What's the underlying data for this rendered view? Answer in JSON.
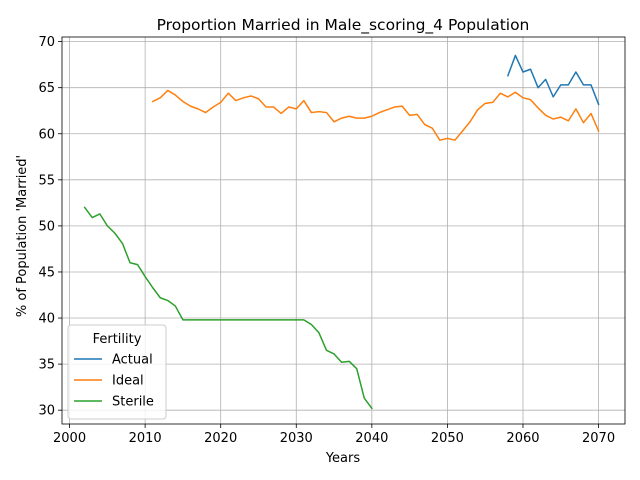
{
  "chart_data": {
    "type": "line",
    "title": "Proportion Married in Male_scoring_4 Population",
    "xlabel": "Years",
    "ylabel": "% of Population 'Married'",
    "xlim": [
      1999,
      2073.5
    ],
    "ylim": [
      28.5,
      70.5
    ],
    "xticks": [
      2000,
      2010,
      2020,
      2030,
      2040,
      2050,
      2060,
      2070
    ],
    "yticks": [
      30,
      35,
      40,
      45,
      50,
      55,
      60,
      65,
      70
    ],
    "grid": true,
    "legend": {
      "title": "Fertility",
      "placement": "lower-left"
    },
    "series": [
      {
        "name": "Actual",
        "color": "#1f77b4",
        "x": [
          2058,
          2059,
          2060,
          2061,
          2062,
          2063,
          2064,
          2065,
          2066,
          2067,
          2068,
          2069,
          2070
        ],
        "y": [
          66.3,
          68.5,
          66.7,
          67.0,
          65.0,
          65.9,
          64.0,
          65.3,
          65.3,
          66.7,
          65.3,
          65.3,
          63.2
        ]
      },
      {
        "name": "Ideal",
        "color": "#ff7f0e",
        "x": [
          2011,
          2012,
          2013,
          2014,
          2015,
          2016,
          2017,
          2018,
          2019,
          2020,
          2021,
          2022,
          2023,
          2024,
          2025,
          2026,
          2027,
          2028,
          2029,
          2030,
          2031,
          2032,
          2033,
          2034,
          2035,
          2036,
          2037,
          2038,
          2039,
          2040,
          2041,
          2042,
          2043,
          2044,
          2045,
          2046,
          2047,
          2048,
          2049,
          2050,
          2051,
          2052,
          2053,
          2054,
          2055,
          2056,
          2057,
          2058,
          2059,
          2060,
          2061,
          2062,
          2063,
          2064,
          2065,
          2066,
          2067,
          2068,
          2069,
          2070
        ],
        "y": [
          63.5,
          63.9,
          64.7,
          64.2,
          63.5,
          63.0,
          62.7,
          62.3,
          62.9,
          63.4,
          64.4,
          63.6,
          63.9,
          64.1,
          63.8,
          62.9,
          62.9,
          62.2,
          62.9,
          62.7,
          63.6,
          62.3,
          62.4,
          62.3,
          61.3,
          61.7,
          61.9,
          61.7,
          61.7,
          61.9,
          62.3,
          62.6,
          62.9,
          63.0,
          62.0,
          62.1,
          61.0,
          60.6,
          59.3,
          59.5,
          59.3,
          60.3,
          61.3,
          62.6,
          63.3,
          63.4,
          64.4,
          64.0,
          64.5,
          63.9,
          63.7,
          62.8,
          62.0,
          61.6,
          61.8,
          61.4,
          62.7,
          61.2,
          62.2,
          60.3
        ]
      },
      {
        "name": "Sterile",
        "color": "#2ca02c",
        "x": [
          2002,
          2003,
          2004,
          2005,
          2006,
          2007,
          2008,
          2009,
          2010,
          2011,
          2012,
          2013,
          2014,
          2015,
          2016,
          2017,
          2018,
          2019,
          2020,
          2021,
          2022,
          2023,
          2024,
          2025,
          2026,
          2027,
          2028,
          2029,
          2030,
          2031,
          2032,
          2033,
          2034,
          2035,
          2036,
          2037,
          2038,
          2039,
          2040
        ],
        "y": [
          52.0,
          50.9,
          51.3,
          50.0,
          49.2,
          48.1,
          46.0,
          45.8,
          44.5,
          43.3,
          42.2,
          41.9,
          41.3,
          39.8,
          39.8,
          39.8,
          39.8,
          39.8,
          39.8,
          39.8,
          39.8,
          39.8,
          39.8,
          39.8,
          39.8,
          39.8,
          39.8,
          39.8,
          39.8,
          39.8,
          39.3,
          38.4,
          36.5,
          36.1,
          35.2,
          35.3,
          34.5,
          31.3,
          30.2
        ]
      }
    ]
  }
}
